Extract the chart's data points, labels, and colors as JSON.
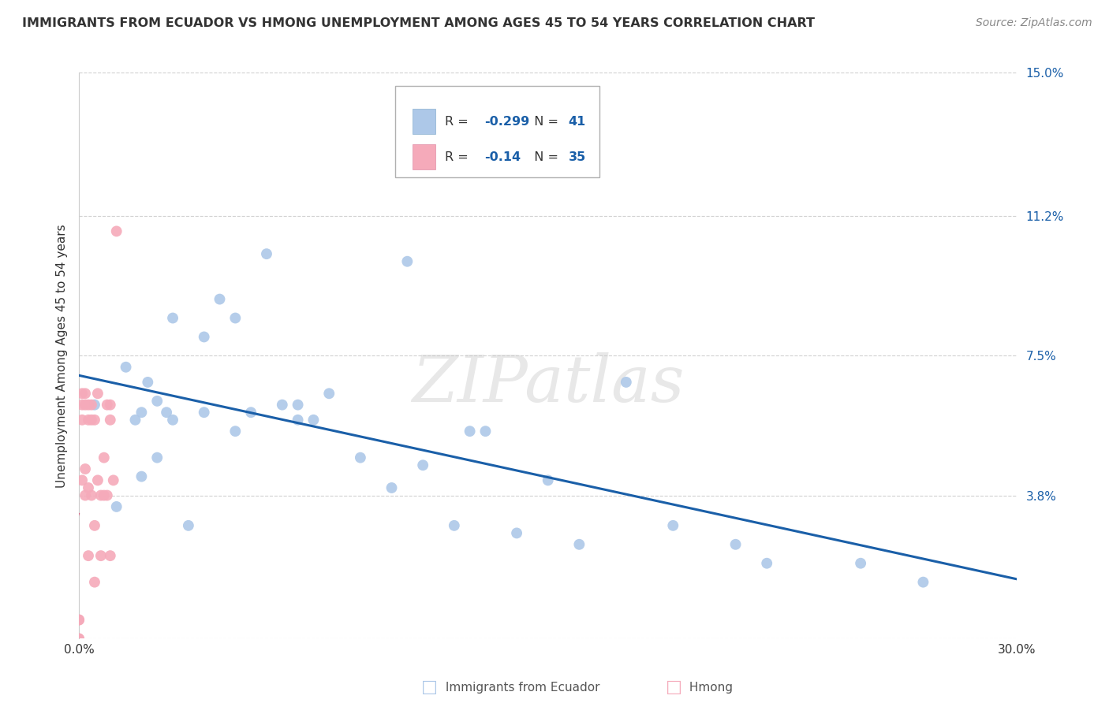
{
  "title": "IMMIGRANTS FROM ECUADOR VS HMONG UNEMPLOYMENT AMONG AGES 45 TO 54 YEARS CORRELATION CHART",
  "source": "Source: ZipAtlas.com",
  "ylabel": "Unemployment Among Ages 45 to 54 years",
  "xlim": [
    0.0,
    0.3
  ],
  "ylim": [
    0.0,
    0.15
  ],
  "xticks": [
    0.0,
    0.05,
    0.1,
    0.15,
    0.2,
    0.25,
    0.3
  ],
  "xticklabels": [
    "0.0%",
    "",
    "",
    "",
    "",
    "",
    "30.0%"
  ],
  "ytick_positions": [
    0.0,
    0.038,
    0.075,
    0.112,
    0.15
  ],
  "ytick_labels": [
    "",
    "3.8%",
    "7.5%",
    "11.2%",
    "15.0%"
  ],
  "background_color": "#ffffff",
  "grid_color": "#d0d0d0",
  "watermark_text": "ZIPatlas",
  "ecuador_color": "#adc8e8",
  "hmong_color": "#f5aaba",
  "ecuador_line_color": "#1a5fa8",
  "hmong_line_color": "#d46080",
  "ecuador_R": -0.299,
  "ecuador_N": 41,
  "hmong_R": -0.14,
  "hmong_N": 35,
  "legend_text_color": "#1a5fa8",
  "ecuador_x": [
    0.005,
    0.012,
    0.015,
    0.018,
    0.02,
    0.02,
    0.022,
    0.025,
    0.025,
    0.028,
    0.03,
    0.03,
    0.035,
    0.04,
    0.04,
    0.045,
    0.05,
    0.05,
    0.055,
    0.06,
    0.065,
    0.07,
    0.07,
    0.075,
    0.08,
    0.09,
    0.1,
    0.105,
    0.11,
    0.12,
    0.125,
    0.13,
    0.14,
    0.15,
    0.16,
    0.175,
    0.19,
    0.21,
    0.22,
    0.25,
    0.27
  ],
  "ecuador_y": [
    0.062,
    0.035,
    0.072,
    0.058,
    0.06,
    0.043,
    0.068,
    0.063,
    0.048,
    0.06,
    0.085,
    0.058,
    0.03,
    0.08,
    0.06,
    0.09,
    0.085,
    0.055,
    0.06,
    0.102,
    0.062,
    0.062,
    0.058,
    0.058,
    0.065,
    0.048,
    0.04,
    0.1,
    0.046,
    0.03,
    0.055,
    0.055,
    0.028,
    0.042,
    0.025,
    0.068,
    0.03,
    0.025,
    0.02,
    0.02,
    0.015
  ],
  "hmong_x": [
    0.0,
    0.0,
    0.0,
    0.0,
    0.001,
    0.001,
    0.001,
    0.001,
    0.002,
    0.002,
    0.002,
    0.002,
    0.003,
    0.003,
    0.003,
    0.003,
    0.004,
    0.004,
    0.004,
    0.005,
    0.005,
    0.005,
    0.006,
    0.006,
    0.007,
    0.007,
    0.008,
    0.008,
    0.009,
    0.009,
    0.01,
    0.01,
    0.01,
    0.011,
    0.012
  ],
  "hmong_y": [
    0.0,
    0.0,
    0.005,
    0.005,
    0.065,
    0.062,
    0.058,
    0.042,
    0.065,
    0.062,
    0.045,
    0.038,
    0.062,
    0.058,
    0.04,
    0.022,
    0.062,
    0.058,
    0.038,
    0.058,
    0.03,
    0.015,
    0.065,
    0.042,
    0.038,
    0.022,
    0.048,
    0.038,
    0.062,
    0.038,
    0.062,
    0.058,
    0.022,
    0.042,
    0.108
  ]
}
